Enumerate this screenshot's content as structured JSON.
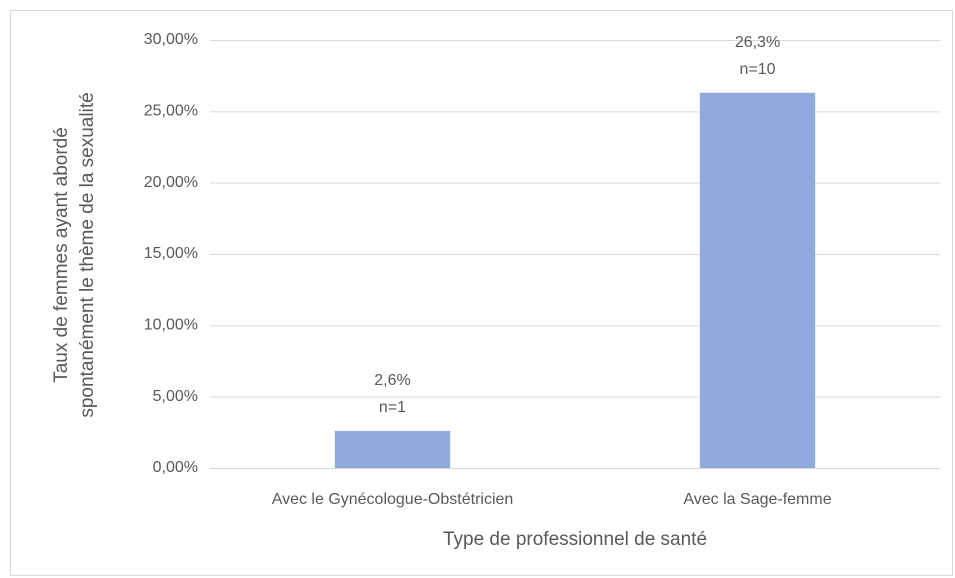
{
  "chart_data": {
    "type": "bar",
    "categories": [
      "Avec le Gynécologue-Obstétricien",
      "Avec la Sage-femme"
    ],
    "values": [
      2.6,
      26.3
    ],
    "value_labels": [
      "2,6%",
      "26,3%"
    ],
    "annotations": [
      "n=1",
      "n=10"
    ],
    "color": "#8faadc",
    "x_label": "Type de professionnel de santé",
    "y_label": [
      "Taux de femmes ayant abordé",
      "spontanément le thème de la sexualité"
    ],
    "ylim": [
      0,
      30
    ],
    "yticks": [
      {
        "value": 0,
        "label": "0,00%"
      },
      {
        "value": 5,
        "label": "5,00%"
      },
      {
        "value": 10,
        "label": "10,00%"
      },
      {
        "value": 15,
        "label": "15,00%"
      },
      {
        "value": 20,
        "label": "20,00%"
      },
      {
        "value": 25,
        "label": "25,00%"
      },
      {
        "value": 30,
        "label": "30,00%"
      }
    ],
    "grid": true
  }
}
